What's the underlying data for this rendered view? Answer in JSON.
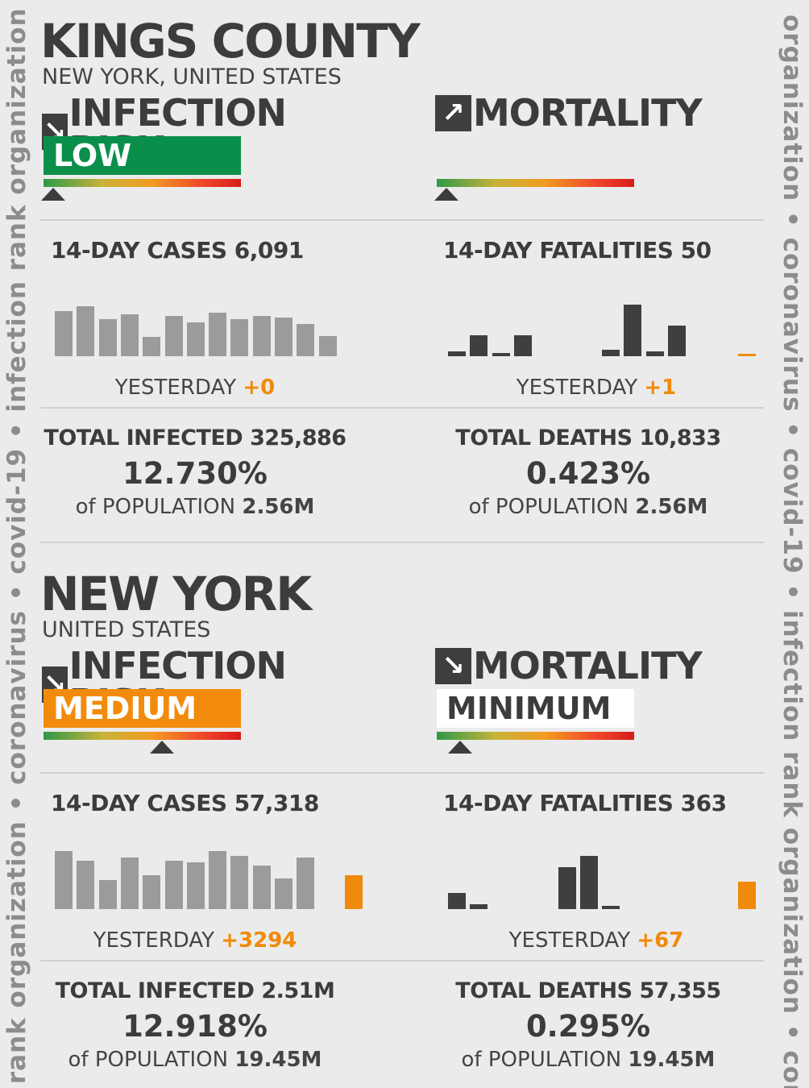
{
  "sidebar": {
    "left_text": "n rank organization  •  coronavirus  •  covid-19  •  infection rank organization",
    "right_text": "organization  •  coronavirus  •  covid-19  •  infection rank organization  •  cor"
  },
  "colors": {
    "low": "#0a8f4b",
    "medium": "#f28b0c",
    "minimum_bg": "#ffffff",
    "bar_gray": "#9b9b9b",
    "bar_dark": "#3f3f3f",
    "accent_orange": "#f08a0a"
  },
  "sections": [
    {
      "title": "KINGS COUNTY",
      "subtitle": "NEW YORK, UNITED STATES",
      "infection": {
        "arrow_icon": "arrow-down-right-icon",
        "arrow_glyph": "↘",
        "label": "INFECTION RISK",
        "level": "LOW",
        "level_fraction": 0.05
      },
      "mortality": {
        "arrow_icon": "arrow-up-right-icon",
        "arrow_glyph": "↗",
        "label": "MORTALITY",
        "level": "",
        "level_fraction": 0.05
      },
      "cases": {
        "title": "14-DAY CASES 6,091",
        "bars": [
          0.7,
          0.77,
          0.58,
          0.65,
          0.3,
          0.62,
          0.52,
          0.67,
          0.58,
          0.62,
          0.6,
          0.5,
          0.31
        ],
        "latest": null,
        "yesterday_label": "YESTERDAY",
        "yesterday_value": "+0"
      },
      "fatalities": {
        "title": "14-DAY FATALITIES 50",
        "bars": [
          0.08,
          0.33,
          0.05,
          0.33,
          0,
          0,
          0,
          0.1,
          0.8,
          0.08,
          0.47,
          0
        ],
        "latest": 0.04,
        "yesterday_label": "YESTERDAY",
        "yesterday_value": "+1"
      },
      "total_infected": {
        "title": "TOTAL INFECTED 325,886",
        "pct": "12.730%",
        "pop_label": "of POPULATION",
        "pop_value": "2.56M"
      },
      "total_deaths": {
        "title": "TOTAL DEATHS 10,833",
        "pct": "0.423%",
        "pop_label": "of POPULATION",
        "pop_value": "2.56M"
      }
    },
    {
      "title": "NEW YORK",
      "subtitle": "UNITED STATES",
      "infection": {
        "arrow_icon": "arrow-down-right-icon",
        "arrow_glyph": "↘",
        "label": "INFECTION RISK",
        "level": "MEDIUM",
        "level_fraction": 0.6
      },
      "mortality": {
        "arrow_icon": "arrow-down-right-icon",
        "arrow_glyph": "↘",
        "label": "MORTALITY",
        "level": "MINIMUM",
        "level_fraction": 0.12
      },
      "cases": {
        "title": "14-DAY CASES 57,318",
        "bars": [
          0.9,
          0.75,
          0.45,
          0.8,
          0.53,
          0.75,
          0.72,
          0.9,
          0.83,
          0.68,
          0.48,
          0.8
        ],
        "latest": 0.52,
        "yesterday_label": "YESTERDAY",
        "yesterday_value": "+3294"
      },
      "fatalities": {
        "title": "14-DAY FATALITIES 363",
        "bars": [
          0.25,
          0.08,
          0,
          0,
          0,
          0.65,
          0.82,
          0.05,
          0,
          0,
          0,
          0,
          0
        ],
        "latest": 0.42,
        "yesterday_label": "YESTERDAY",
        "yesterday_value": "+67"
      },
      "total_infected": {
        "title": "TOTAL INFECTED 2.51M",
        "pct": "12.918%",
        "pop_label": "of POPULATION",
        "pop_value": "19.45M"
      },
      "total_deaths": {
        "title": "TOTAL DEATHS 57,355",
        "pct": "0.295%",
        "pop_label": "of POPULATION",
        "pop_value": "19.45M"
      }
    }
  ]
}
